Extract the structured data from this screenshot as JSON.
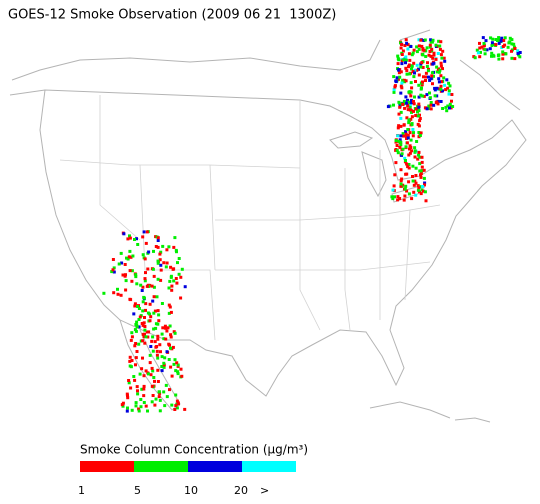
{
  "title": "GOES-12 Smoke Observation (2009 06 21  1300Z)",
  "legend": {
    "title": "Smoke Column Concentration (μg/m³)",
    "colors": [
      "#ff0000",
      "#00ee00",
      "#0000dd",
      "#00ffff"
    ],
    "labels": [
      "1",
      "5",
      "10",
      "20",
      ">"
    ]
  }
}
